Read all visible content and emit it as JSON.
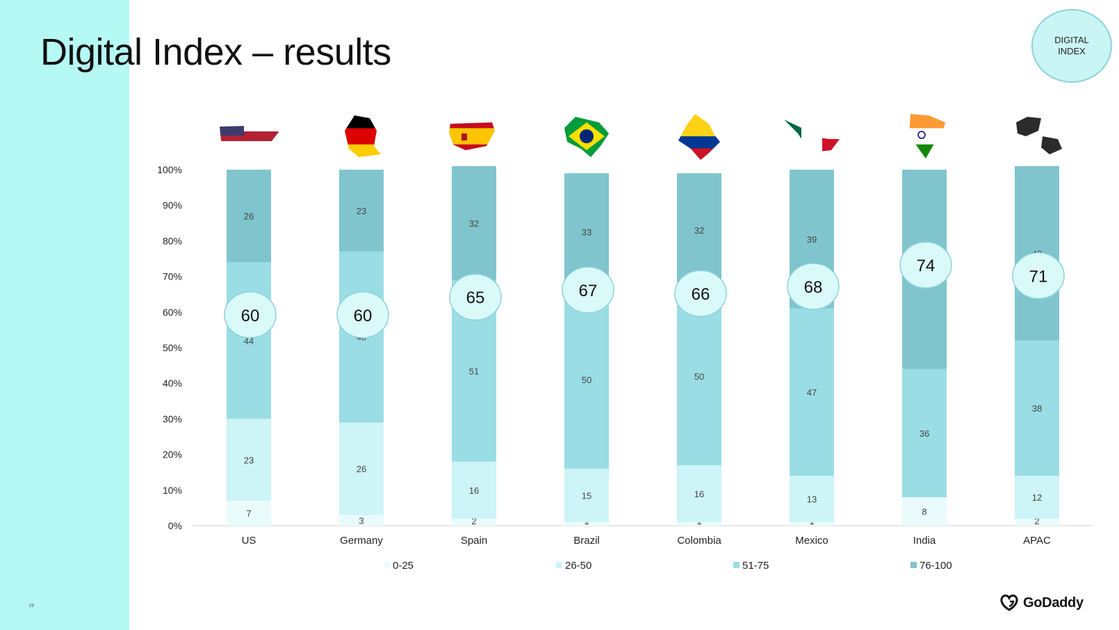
{
  "title": "Digital Index – results",
  "badge": "DIGITAL\nINDEX",
  "page_number": "19",
  "logo": "GoDaddy",
  "colors": {
    "side_band": "#b5f9f4",
    "seg_0_25": "#e9fcfb",
    "seg_26_50": "#cdf4f6",
    "seg_51_75": "#9bdde4",
    "seg_76_100": "#80c5cd",
    "bubble_fill": "#dafafa",
    "bubble_stroke": "#8fd1d8"
  },
  "chart_data": {
    "type": "bar",
    "stacked": true,
    "percent_axis": true,
    "categories": [
      "US",
      "Germany",
      "Spain",
      "Brazil",
      "Colombia",
      "Mexico",
      "India",
      "APAC"
    ],
    "series": [
      {
        "name": "0-25",
        "values": [
          7,
          3,
          2,
          1,
          1,
          1,
          8,
          2
        ]
      },
      {
        "name": "26-50",
        "values": [
          23,
          26,
          16,
          15,
          16,
          13,
          0,
          12
        ]
      },
      {
        "name": "51-75",
        "values": [
          44,
          48,
          51,
          50,
          50,
          47,
          36,
          38
        ]
      },
      {
        "name": "76-100",
        "values": [
          26,
          23,
          32,
          33,
          32,
          39,
          56,
          49
        ]
      }
    ],
    "index_scores": [
      60,
      60,
      65,
      67,
      66,
      68,
      74,
      71
    ],
    "yticks": [
      "0%",
      "10%",
      "20%",
      "30%",
      "40%",
      "50%",
      "60%",
      "70%",
      "80%",
      "90%",
      "100%"
    ],
    "ylim": [
      0,
      100
    ],
    "legend_position": "bottom",
    "flag_icons": [
      "us-flag-map-icon",
      "germany-flag-map-icon",
      "spain-flag-map-icon",
      "brazil-flag-map-icon",
      "colombia-flag-map-icon",
      "mexico-flag-map-icon",
      "india-flag-map-icon",
      "apac-flag-map-icon"
    ]
  }
}
